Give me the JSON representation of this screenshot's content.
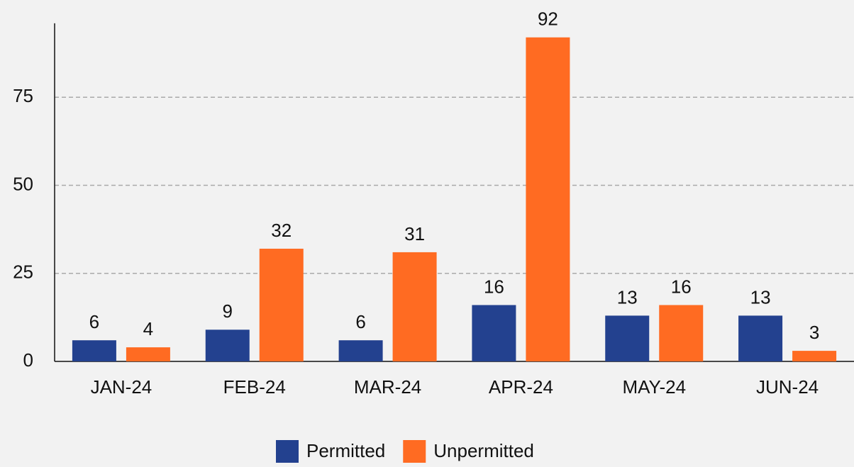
{
  "chart_data": {
    "type": "bar",
    "categories": [
      "JAN-24",
      "FEB-24",
      "MAR-24",
      "APR-24",
      "MAY-24",
      "JUN-24"
    ],
    "series": [
      {
        "name": "Permitted",
        "color": "#23418f",
        "values": [
          6,
          9,
          6,
          16,
          13,
          13
        ]
      },
      {
        "name": "Unpermitted",
        "color": "#ff6b22",
        "values": [
          4,
          32,
          31,
          92,
          16,
          3
        ]
      }
    ],
    "ylim": [
      0,
      96
    ],
    "yticks": [
      0,
      25,
      50,
      75
    ],
    "grid": true,
    "legend": "bottom"
  }
}
